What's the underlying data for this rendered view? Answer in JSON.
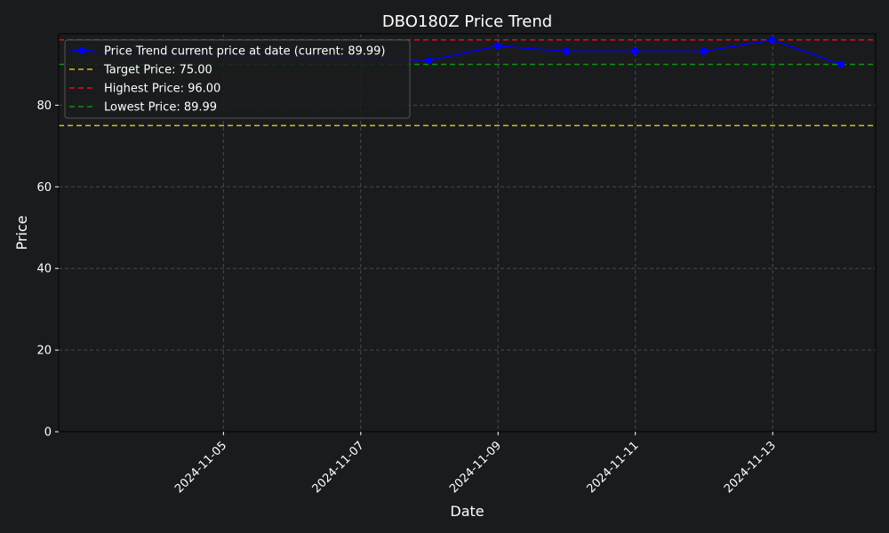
{
  "chart_data": {
    "type": "line",
    "title": "DBO180Z Price Trend",
    "xlabel": "Date",
    "ylabel": "Price",
    "xlim": [
      "2024-11-03",
      "2024-11-14"
    ],
    "ylim": [
      0,
      97.5
    ],
    "x_ticks": [
      "2024-11-05",
      "2024-11-07",
      "2024-11-09",
      "2024-11-11",
      "2024-11-13"
    ],
    "y_ticks": [
      0,
      20,
      40,
      60,
      80
    ],
    "grid": true,
    "legend_position": "top-left",
    "series": [
      {
        "name": "Price Trend current price at date (current: 89.99)",
        "color": "#0000ff",
        "style": "line-marker",
        "points": [
          {
            "x": "2024-11-03",
            "y": 93.0
          },
          {
            "x": "2024-11-08",
            "y": 91.0
          },
          {
            "x": "2024-11-09",
            "y": 94.5
          },
          {
            "x": "2024-11-10",
            "y": 93.2
          },
          {
            "x": "2024-11-11",
            "y": 93.2
          },
          {
            "x": "2024-11-12",
            "y": 93.2
          },
          {
            "x": "2024-11-13",
            "y": 96.0
          },
          {
            "x": "2024-11-14",
            "y": 89.99
          }
        ]
      }
    ],
    "reference_lines": [
      {
        "name": "Target Price: 75.00",
        "y": 75.0,
        "color": "#d4c21a"
      },
      {
        "name": "Highest Price: 96.00",
        "y": 96.0,
        "color": "#e01010"
      },
      {
        "name": "Lowest Price: 89.99",
        "y": 89.99,
        "color": "#109010"
      }
    ]
  }
}
